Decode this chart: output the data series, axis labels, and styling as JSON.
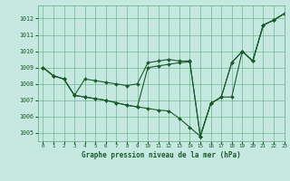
{
  "title": "Graphe pression niveau de la mer (hPa)",
  "background_color": "#c5e8e0",
  "grid_color": "#5aaa7a",
  "line_color": "#1a5c2a",
  "xlim": [
    -0.5,
    23
  ],
  "ylim": [
    1004.5,
    1012.8
  ],
  "yticks": [
    1005,
    1006,
    1007,
    1008,
    1009,
    1010,
    1011,
    1012
  ],
  "xticks": [
    0,
    1,
    2,
    3,
    4,
    5,
    6,
    7,
    8,
    9,
    10,
    11,
    12,
    13,
    14,
    15,
    16,
    17,
    18,
    19,
    20,
    21,
    22,
    23
  ],
  "s1": [
    1009.0,
    1008.5,
    1008.3,
    1007.3,
    1008.3,
    1008.2,
    1008.1,
    1008.0,
    1007.9,
    1008.0,
    1009.3,
    1009.4,
    1009.5,
    1009.4,
    1009.4,
    1004.8,
    1006.8,
    1007.2,
    1009.3,
    1010.0,
    1009.4,
    1011.6,
    1011.9,
    1012.3
  ],
  "s2": [
    1009.0,
    1008.5,
    1008.3,
    1007.3,
    1007.2,
    1007.1,
    1007.0,
    1006.85,
    1006.7,
    1006.6,
    1006.5,
    1006.4,
    1006.35,
    1005.9,
    1005.35,
    1004.8,
    1006.8,
    1007.2,
    1007.2,
    1010.0,
    1009.4,
    1011.6,
    1011.9,
    1012.3
  ],
  "s3": [
    1009.0,
    1008.5,
    1008.3,
    1007.3,
    1007.2,
    1007.1,
    1007.0,
    1006.85,
    1006.7,
    1006.6,
    1009.0,
    1009.1,
    1009.2,
    1009.3,
    1009.35,
    1004.8,
    1006.8,
    1007.2,
    1009.3,
    1010.0,
    1009.4,
    1011.6,
    1011.9,
    1012.3
  ]
}
